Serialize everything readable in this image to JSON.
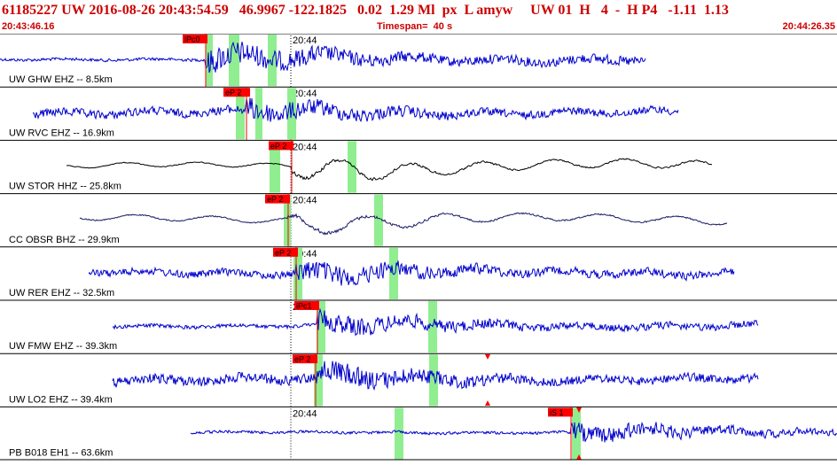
{
  "header": {
    "title": "61185227 UW 2016-08-26 20:43:54.59   46.9967 -122.1825   0.02  1.29 Ml  px  L amyw     UW 01  H   4  -  H P4   -1.11  1.13",
    "start_time": "20:43:46.16",
    "timespan": "Timespan=  40 s",
    "end_time": "20:44:26.35"
  },
  "time_tick_label": "20:44",
  "colors": {
    "trace": "#0000cc",
    "trace_dark": "#000000",
    "trace_navy": "#1a1a66",
    "pick": "#ff0000",
    "window": "#90ee90",
    "header_text": "#cc0000"
  },
  "traces": [
    {
      "label": "UW GHW EHZ -- 8.5km",
      "pick": "iPc0",
      "color": "trace"
    },
    {
      "label": "UW RVC EHZ -- 16.9km",
      "pick": "eP 2",
      "color": "trace"
    },
    {
      "label": "UW STOR HHZ -- 25.8km",
      "pick": "eP 2",
      "color": "trace_dark"
    },
    {
      "label": "CC OBSR BHZ -- 29.9km",
      "pick": "eP 2",
      "color": "trace_navy"
    },
    {
      "label": "UW RER EHZ -- 32.5km",
      "pick": "eP 2",
      "color": "trace"
    },
    {
      "label": "UW FMW EHZ -- 39.3km",
      "pick": "iPc1",
      "color": "trace"
    },
    {
      "label": "UW LO2 EHZ -- 39.4km",
      "pick": "eP 2",
      "color": "trace"
    },
    {
      "label": "PB B018 EH1 -- 63.6km",
      "pick": "iS 1",
      "color": "trace"
    }
  ]
}
